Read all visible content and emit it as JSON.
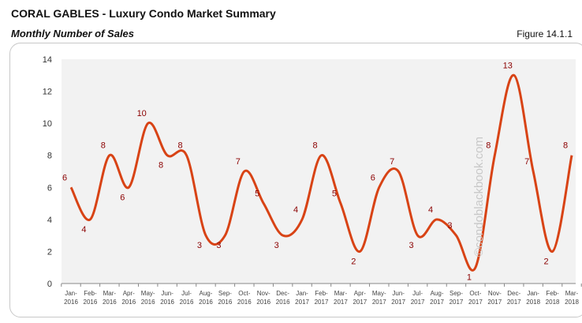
{
  "header": {
    "title": "CORAL GABLES - Luxury Condo Market Summary",
    "subtitle": "Monthly Number of Sales",
    "figure": "Figure 14.1.1"
  },
  "watermark": "©condoblackbook.com",
  "chart_data": {
    "type": "line",
    "title": "",
    "xlabel": "",
    "ylabel": "",
    "ylim": [
      0,
      14
    ],
    "yticks": [
      0,
      2,
      4,
      6,
      8,
      10,
      12,
      14
    ],
    "grid": false,
    "line_color": "#d84315",
    "label_color": "#8b0000",
    "plot_bg": "#f2f2f2",
    "categories": [
      "Jan-2016",
      "Feb-2016",
      "Mar-2016",
      "Apr-2016",
      "May-2016",
      "Jun-2016",
      "Jul-2016",
      "Aug-2016",
      "Sep-2016",
      "Oct-2016",
      "Nov-2016",
      "Dec-2016",
      "Jan-2017",
      "Feb-2017",
      "Mar-2017",
      "Apr-2017",
      "May-2017",
      "Jun-2017",
      "Jul-2017",
      "Aug-2017",
      "Sep-2017",
      "Oct-2017",
      "Nov-2017",
      "Dec-2017",
      "Jan-2018",
      "Feb-2018",
      "Mar-2018"
    ],
    "values": [
      6,
      4,
      8,
      6,
      10,
      8,
      8,
      3,
      3,
      7,
      5,
      3,
      4,
      8,
      5,
      2,
      6,
      7,
      3,
      4,
      3,
      1,
      8,
      13,
      7,
      2,
      8
    ]
  }
}
